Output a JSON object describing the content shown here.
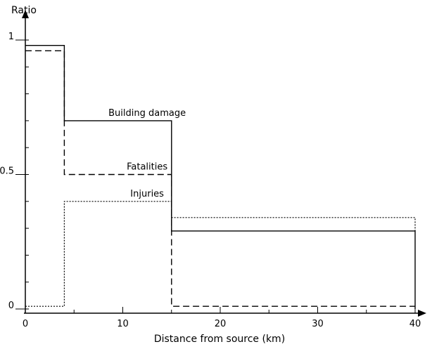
{
  "chart_data": {
    "type": "line",
    "xlabel": "Distance from source (km)",
    "ylabel": "Ratio",
    "xlim": [
      0,
      40
    ],
    "ylim": [
      0,
      1
    ],
    "x_ticks": [
      0,
      10,
      20,
      30,
      40
    ],
    "y_ticks": [
      0,
      0.5,
      1
    ],
    "y_tick_labels": [
      "0",
      "0.5",
      "1"
    ],
    "y_minor_step": 0.1,
    "x_minor_step": 5,
    "grid": false,
    "series": [
      {
        "name": "Building damage",
        "style": "solid",
        "color": "#000000",
        "points": [
          [
            0,
            0.98
          ],
          [
            4,
            0.98
          ],
          [
            4,
            0.7
          ],
          [
            15,
            0.7
          ],
          [
            15,
            0.29
          ],
          [
            40,
            0.29
          ],
          [
            40,
            0
          ]
        ],
        "label_at": [
          12.5,
          0.7
        ]
      },
      {
        "name": "Fatalities",
        "style": "dashed",
        "color": "#000000",
        "points": [
          [
            0,
            0.96
          ],
          [
            4,
            0.96
          ],
          [
            4,
            0.5
          ],
          [
            15,
            0.5
          ],
          [
            15,
            0.01
          ],
          [
            40,
            0.01
          ]
        ],
        "label_at": [
          12.5,
          0.5
        ]
      },
      {
        "name": "Injuries",
        "style": "dotted",
        "color": "#000000",
        "points": [
          [
            0,
            0.01
          ],
          [
            4,
            0.01
          ],
          [
            4,
            0.4
          ],
          [
            15,
            0.4
          ],
          [
            15,
            0.34
          ],
          [
            40,
            0.34
          ],
          [
            40,
            0.29
          ]
        ],
        "label_at": [
          12.5,
          0.4
        ]
      }
    ]
  }
}
